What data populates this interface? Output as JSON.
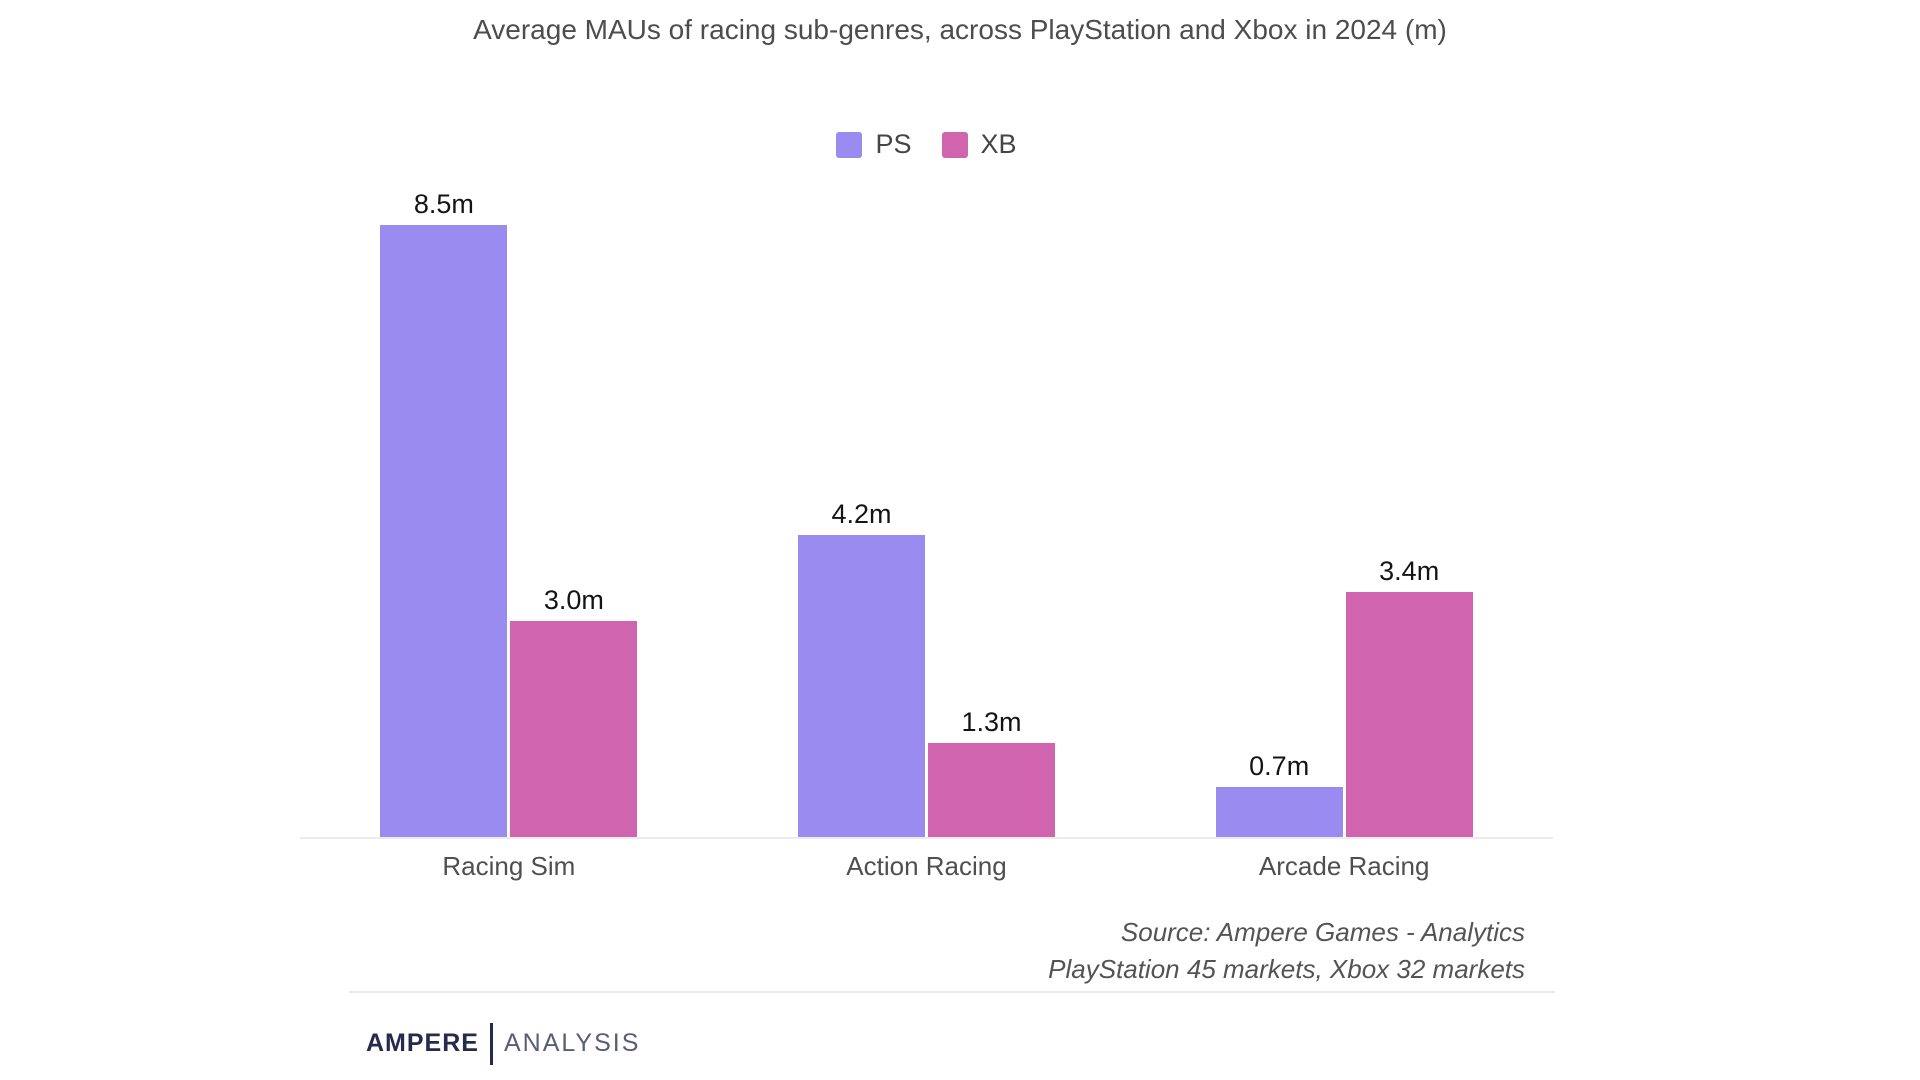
{
  "title": "Average MAUs of racing sub-genres, across PlayStation and Xbox in 2024 (m)",
  "chart_data": {
    "type": "bar",
    "title": "Average MAUs of racing sub-genres, across PlayStation and Xbox in 2024 (m)",
    "categories": [
      "Racing Sim",
      "Action Racing",
      "Arcade Racing"
    ],
    "series": [
      {
        "name": "PS",
        "color": "#9a8bf0",
        "values": [
          8.5,
          4.2,
          0.7
        ],
        "value_labels": [
          "8.5m",
          "4.2m",
          "0.7m"
        ]
      },
      {
        "name": "XB",
        "color": "#d164ae",
        "values": [
          3.0,
          1.3,
          3.4
        ],
        "value_labels": [
          "3.0m",
          "1.3m",
          "3.4m"
        ]
      }
    ],
    "unit": "m",
    "ylim": [
      0,
      8.5
    ],
    "grid": false,
    "y_axis_visible": false,
    "value_labels_shown": true,
    "legend_position": "top-center"
  },
  "source": {
    "line1": "Source: Ampere Games - Analytics",
    "line2": "PlayStation 45 markets, Xbox 32 markets"
  },
  "logo": {
    "brand": "AMPERE",
    "suffix": "ANALYSIS"
  },
  "colors": {
    "ps_series": "#9a8bf0",
    "xb_series": "#d164ae",
    "axis_line": "#ececec",
    "divider": "#e9eaee",
    "title_text": "#4d4d4d",
    "value_label_text": "#141414",
    "category_text": "#4f4f4f",
    "source_text": "#545454",
    "logo_brand_navy": "#262b4d",
    "logo_suffix_navy": "#5a5d77"
  }
}
